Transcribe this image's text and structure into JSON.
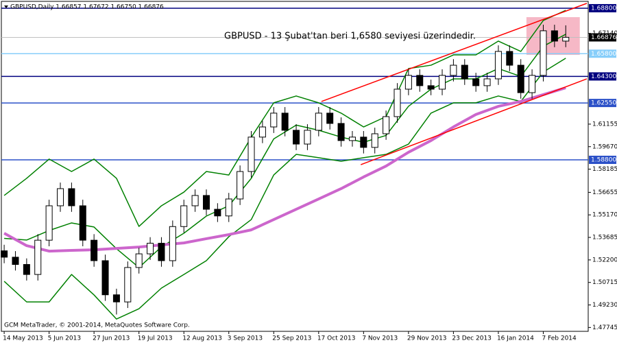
{
  "chart_data": {
    "type": "candlestick",
    "title": "GBPUSD,Daily  1.66857 1.67672 1.66750 1.66876",
    "annotation": "GBPUSD - 13 Şubat'tan beri 1,6580 seviyesi üzerindedir.",
    "footer": "GCM MetaTrader, © 2001-2014, MetaQuotes Software Corp.",
    "x": [
      0,
      4,
      8,
      12,
      16,
      20,
      24,
      28,
      32,
      36,
      40,
      44,
      48,
      52,
      56,
      60,
      64,
      68,
      72,
      76,
      80,
      84,
      88,
      92,
      96,
      100,
      104,
      108,
      112,
      116,
      120,
      124,
      128,
      132,
      136,
      140,
      144,
      148,
      152,
      156,
      160,
      164,
      168,
      172,
      176,
      180,
      184,
      188,
      192,
      196,
      200
    ],
    "open": [
      1.528,
      1.5238,
      1.519,
      1.5124,
      1.535,
      1.5577,
      1.569,
      1.5577,
      1.535,
      1.5215,
      1.499,
      1.4943,
      1.517,
      1.526,
      1.533,
      1.5215,
      1.544,
      1.5577,
      1.5645,
      1.5554,
      1.551,
      1.5622,
      1.5803,
      1.603,
      1.6097,
      1.6188,
      1.6075,
      1.5984,
      1.6075,
      1.6188,
      1.612,
      1.6007,
      1.603,
      1.5962,
      1.6052,
      1.6165,
      1.6346,
      1.6437,
      1.6369,
      1.6346,
      1.6437,
      1.6504,
      1.6414,
      1.6369,
      1.6414,
      1.6595,
      1.6504,
      1.6323,
      1.6437,
      1.6731,
      1.6663
    ],
    "high": [
      1.532,
      1.5278,
      1.523,
      1.539,
      1.5617,
      1.573,
      1.573,
      1.5617,
      1.539,
      1.5255,
      1.503,
      1.521,
      1.53,
      1.537,
      1.537,
      1.548,
      1.5617,
      1.5685,
      1.5685,
      1.5594,
      1.5662,
      1.5843,
      1.607,
      1.6137,
      1.6228,
      1.6228,
      1.6115,
      1.6115,
      1.6228,
      1.6228,
      1.616,
      1.607,
      1.607,
      1.6092,
      1.6205,
      1.6386,
      1.6477,
      1.6477,
      1.6409,
      1.6477,
      1.6544,
      1.6544,
      1.6454,
      1.6454,
      1.6635,
      1.6635,
      1.6544,
      1.6477,
      1.6771,
      1.6771,
      1.6767
    ],
    "low": [
      1.5198,
      1.515,
      1.5084,
      1.5084,
      1.531,
      1.5537,
      1.5537,
      1.531,
      1.5175,
      1.495,
      1.486,
      1.4903,
      1.513,
      1.522,
      1.5175,
      1.5175,
      1.54,
      1.5537,
      1.5514,
      1.547,
      1.547,
      1.5582,
      1.5763,
      1.599,
      1.6057,
      1.6035,
      1.5944,
      1.5944,
      1.6035,
      1.608,
      1.5967,
      1.5967,
      1.5922,
      1.5922,
      1.6012,
      1.6125,
      1.6306,
      1.6329,
      1.6306,
      1.6306,
      1.6397,
      1.6374,
      1.6329,
      1.6329,
      1.6374,
      1.6464,
      1.6283,
      1.6283,
      1.6397,
      1.6623,
      1.6623
    ],
    "close": [
      1.5238,
      1.519,
      1.5124,
      1.535,
      1.5577,
      1.569,
      1.5577,
      1.535,
      1.5215,
      1.499,
      1.4943,
      1.517,
      1.526,
      1.533,
      1.5215,
      1.544,
      1.5577,
      1.5645,
      1.5554,
      1.551,
      1.5622,
      1.5803,
      1.603,
      1.6097,
      1.6188,
      1.6075,
      1.5984,
      1.6075,
      1.6188,
      1.612,
      1.6007,
      1.603,
      1.5962,
      1.6052,
      1.6165,
      1.6346,
      1.6437,
      1.6369,
      1.6346,
      1.6437,
      1.6504,
      1.6414,
      1.6369,
      1.6414,
      1.6595,
      1.6504,
      1.6323,
      1.6437,
      1.6731,
      1.6663,
      1.6688
    ],
    "candle_color": "#000000",
    "bull_fill": "#ffffff",
    "bear_fill": "#000000",
    "indicator_x": [
      0,
      8,
      16,
      24,
      32,
      40,
      48,
      56,
      64,
      72,
      80,
      88,
      96,
      104,
      112,
      120,
      128,
      136,
      144,
      152,
      160,
      168,
      176,
      184,
      192,
      200
    ],
    "indicators": [
      {
        "color": "#008000",
        "values": [
          1.5645,
          1.5758,
          1.5885,
          1.5803,
          1.5885,
          1.5758,
          1.5441,
          1.5577,
          1.5667,
          1.5803,
          1.578,
          1.6029,
          1.6256,
          1.6301,
          1.6256,
          1.6188,
          1.6097,
          1.6165,
          1.6482,
          1.6504,
          1.6572,
          1.6572,
          1.6663,
          1.6595,
          1.6799,
          1.6866
        ]
      },
      {
        "color": "#008000",
        "values": [
          1.5362,
          1.5351,
          1.5414,
          1.5464,
          1.5437,
          1.5294,
          1.517,
          1.5306,
          1.5396,
          1.5509,
          1.5577,
          1.5758,
          1.6018,
          1.6109,
          1.6075,
          1.603,
          1.5996,
          1.6041,
          1.6233,
          1.6346,
          1.6414,
          1.6414,
          1.6482,
          1.643,
          1.6629,
          1.6708
        ]
      },
      {
        "color": "#008000",
        "values": [
          1.5079,
          1.4943,
          1.4943,
          1.5124,
          1.4989,
          1.483,
          1.4898,
          1.5034,
          1.5124,
          1.5215,
          1.5373,
          1.5486,
          1.578,
          1.5916,
          1.5894,
          1.5871,
          1.5894,
          1.5916,
          1.5984,
          1.6188,
          1.6256,
          1.6256,
          1.6301,
          1.6265,
          1.6459,
          1.655
        ]
      },
      {
        "color": "#cc66cc",
        "width": 4,
        "values": [
          1.5396,
          1.5314,
          1.5278,
          1.5283,
          1.5287,
          1.5296,
          1.5305,
          1.5319,
          1.5332,
          1.536,
          1.5387,
          1.5418,
          1.5486,
          1.5554,
          1.5622,
          1.569,
          1.5767,
          1.5839,
          1.593,
          1.6007,
          1.6097,
          1.6179,
          1.6233,
          1.6265,
          1.631,
          1.6355
        ]
      }
    ],
    "trendlines": [
      {
        "color": "#ff0000",
        "x": [
          113,
          207.5
        ],
        "values": [
          1.6265,
          1.6912
        ]
      },
      {
        "color": "#ff0000",
        "x": [
          127,
          207.5
        ],
        "values": [
          1.5848,
          1.6414
        ]
      }
    ],
    "highlight": {
      "color": "#f4a6b8",
      "x": [
        186,
        205
      ],
      "y": [
        1.6572,
        1.6821
      ]
    },
    "levels": [
      {
        "value": 1.688,
        "label": "1.68800",
        "color": "#00007f"
      },
      {
        "value": 1.658,
        "label": "1.65800",
        "color": "#87cefa"
      },
      {
        "value": 1.643,
        "label": "1.64300",
        "color": "#00007f"
      },
      {
        "value": 1.6255,
        "label": "1.62550",
        "color": "#2b50c8"
      },
      {
        "value": 1.588,
        "label": "1.58800",
        "color": "#2b50c8"
      }
    ],
    "last_price": 1.66876,
    "last_price_color": "#000000",
    "xlim": [
      -1,
      208
    ],
    "xticks": [
      {
        "value": 0,
        "label": "14 May 2013"
      },
      {
        "value": 16,
        "label": "5 Jun 2013"
      },
      {
        "value": 32,
        "label": "27 Jun 2013"
      },
      {
        "value": 48,
        "label": "19 Jul 2013"
      },
      {
        "value": 64,
        "label": "12 Aug 2013"
      },
      {
        "value": 80,
        "label": "3 Sep 2013"
      },
      {
        "value": 96,
        "label": "25 Sep 2013"
      },
      {
        "value": 112,
        "label": "17 Oct 2013"
      },
      {
        "value": 128,
        "label": "7 Nov 2013"
      },
      {
        "value": 144,
        "label": "29 Nov 2013"
      },
      {
        "value": 160,
        "label": "23 Dec 2013"
      },
      {
        "value": 176,
        "label": "16 Jan 2014"
      },
      {
        "value": 192,
        "label": "7 Feb 2014"
      }
    ],
    "ylim": [
      1.4749,
      1.6925
    ],
    "yticks": [
      {
        "value": 1.6714,
        "label": "1.67140"
      },
      {
        "value": 1.61155,
        "label": "1.61155"
      },
      {
        "value": 1.5967,
        "label": "1.59670"
      },
      {
        "value": 1.58185,
        "label": "1.58185"
      },
      {
        "value": 1.56655,
        "label": "1.56655"
      },
      {
        "value": 1.5517,
        "label": "1.55170"
      },
      {
        "value": 1.53685,
        "label": "1.53685"
      },
      {
        "value": 1.522,
        "label": "1.52200"
      },
      {
        "value": 1.50715,
        "label": "1.50715"
      },
      {
        "value": 1.4923,
        "label": "1.49230"
      },
      {
        "value": 1.47745,
        "label": "1.47745"
      }
    ]
  }
}
